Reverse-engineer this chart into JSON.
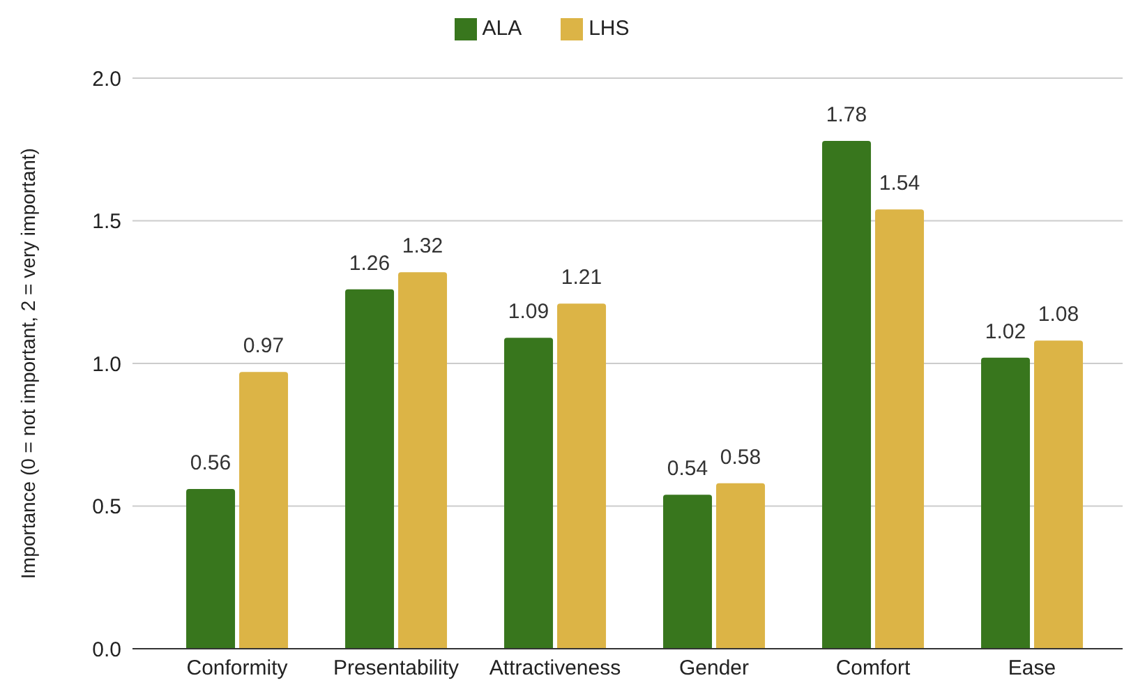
{
  "chart_data": {
    "type": "bar",
    "ylabel": "Importance (0 = not important, 2 = very important)",
    "categories": [
      "Conformity",
      "Presentability",
      "Attractiveness",
      "Gender",
      "Comfort",
      "Ease"
    ],
    "series": [
      {
        "name": "ALA",
        "color": "#38761d",
        "values": [
          0.56,
          1.26,
          1.09,
          0.54,
          1.78,
          1.02
        ]
      },
      {
        "name": "LHS",
        "color": "#dcb446",
        "values": [
          0.97,
          1.32,
          1.21,
          0.58,
          1.54,
          1.08
        ]
      }
    ],
    "ylim": [
      0,
      2
    ],
    "yticks": [
      {
        "value": 0,
        "label": "0.0"
      },
      0.5,
      {
        "value": 1,
        "label": "1.0"
      },
      1.5,
      {
        "value": 2,
        "label": "2.0"
      }
    ],
    "grid": "y",
    "legend": "top",
    "data_labels": true
  }
}
